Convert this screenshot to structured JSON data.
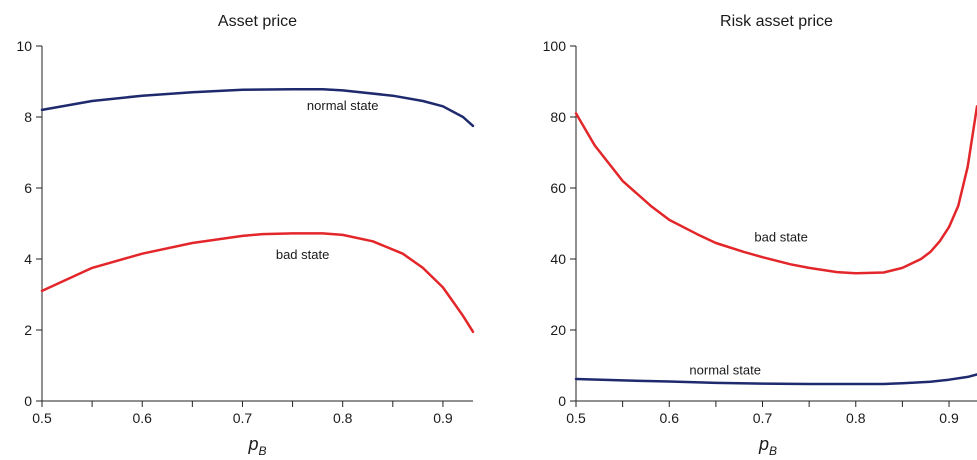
{
  "chart_data": [
    {
      "type": "line",
      "title": "Asset price",
      "xlabel": "p",
      "xlabel_subscript": "B",
      "ylabel": "",
      "xlim": [
        0.5,
        0.93
      ],
      "ylim": [
        0,
        10
      ],
      "xticks": [
        0.5,
        0.6,
        0.7,
        0.8,
        0.9
      ],
      "xtick_labels": [
        "0.5",
        "0.6",
        "0.7",
        "0.8",
        "0.9"
      ],
      "yticks": [
        0,
        2,
        4,
        6,
        8,
        10
      ],
      "ytick_labels": [
        "0",
        "2",
        "4",
        "6",
        "8",
        "10"
      ],
      "grid": false,
      "series": [
        {
          "name": "normal state",
          "color": "#1f2a6e",
          "x": [
            0.5,
            0.55,
            0.6,
            0.65,
            0.7,
            0.75,
            0.78,
            0.8,
            0.85,
            0.88,
            0.9,
            0.92,
            0.93
          ],
          "y": [
            8.2,
            8.45,
            8.6,
            8.7,
            8.77,
            8.78,
            8.78,
            8.75,
            8.6,
            8.45,
            8.3,
            8.0,
            7.75
          ]
        },
        {
          "name": "bad state",
          "color": "#e3262a",
          "x": [
            0.5,
            0.55,
            0.6,
            0.65,
            0.7,
            0.72,
            0.75,
            0.78,
            0.8,
            0.83,
            0.86,
            0.88,
            0.9,
            0.91,
            0.92,
            0.93
          ],
          "y": [
            3.1,
            3.75,
            4.15,
            4.45,
            4.65,
            4.7,
            4.72,
            4.72,
            4.68,
            4.5,
            4.15,
            3.75,
            3.2,
            2.8,
            2.4,
            1.95
          ]
        }
      ],
      "annotations": [
        {
          "text": "normal state",
          "x": 0.8,
          "y": 8.2
        },
        {
          "text": "bad state",
          "x": 0.76,
          "y": 4.0
        }
      ]
    },
    {
      "type": "line",
      "title": "Risk asset price",
      "xlabel": "p",
      "xlabel_subscript": "B",
      "ylabel": "",
      "xlim": [
        0.5,
        0.93
      ],
      "ylim": [
        0,
        100
      ],
      "xticks": [
        0.5,
        0.6,
        0.7,
        0.8,
        0.9
      ],
      "xtick_labels": [
        "0.5",
        "0.6",
        "0.7",
        "0.8",
        "0.9"
      ],
      "yticks": [
        0,
        20,
        40,
        60,
        80,
        100
      ],
      "ytick_labels": [
        "0",
        "20",
        "40",
        "60",
        "80",
        "100"
      ],
      "grid": false,
      "series": [
        {
          "name": "bad state",
          "color": "#e3262a",
          "x": [
            0.5,
            0.52,
            0.55,
            0.58,
            0.6,
            0.63,
            0.65,
            0.68,
            0.7,
            0.73,
            0.75,
            0.78,
            0.8,
            0.83,
            0.85,
            0.87,
            0.88,
            0.89,
            0.9,
            0.91,
            0.92,
            0.93
          ],
          "y": [
            81,
            72,
            62,
            55,
            51,
            47,
            44.5,
            42,
            40.5,
            38.5,
            37.5,
            36.3,
            36,
            36.2,
            37.5,
            40,
            42,
            45,
            49,
            55,
            66,
            83
          ]
        },
        {
          "name": "normal state",
          "color": "#1f2a6e",
          "x": [
            0.5,
            0.55,
            0.6,
            0.65,
            0.7,
            0.75,
            0.8,
            0.83,
            0.85,
            0.88,
            0.9,
            0.92,
            0.93
          ],
          "y": [
            6.2,
            5.8,
            5.5,
            5.1,
            4.9,
            4.8,
            4.8,
            4.8,
            5.0,
            5.4,
            6.0,
            6.8,
            7.5
          ]
        }
      ],
      "annotations": [
        {
          "text": "bad state",
          "x": 0.72,
          "y": 45
        },
        {
          "text": "normal state",
          "x": 0.66,
          "y": 7.5
        }
      ]
    }
  ]
}
